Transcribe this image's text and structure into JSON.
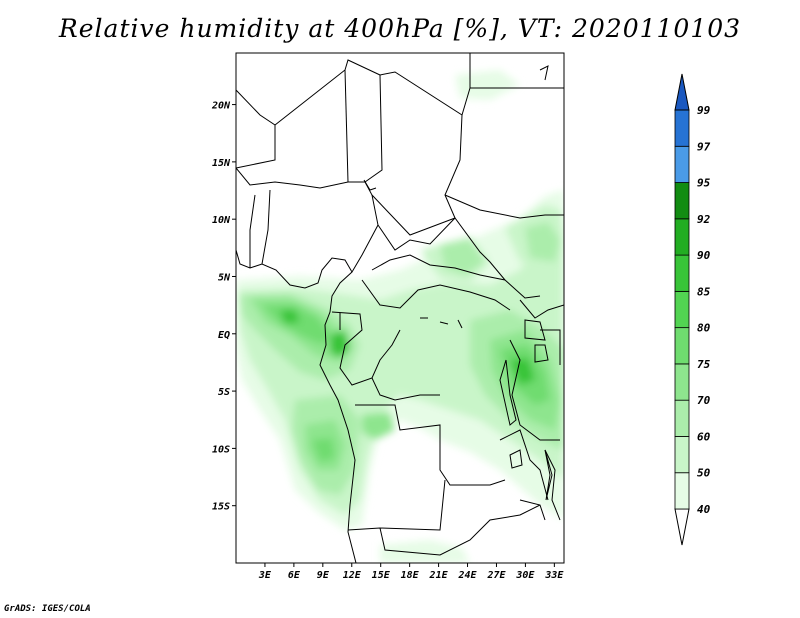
{
  "title": "Relative humidity at 400hPa [%], VT: 2020110103",
  "credit": "GrADS: IGES/COLA",
  "map": {
    "lat_range": [
      -20,
      24.5
    ],
    "lon_range": [
      0,
      34
    ],
    "lat_ticks": [
      {
        "value": 20,
        "label": "20N"
      },
      {
        "value": 15,
        "label": "15N"
      },
      {
        "value": 10,
        "label": "10N"
      },
      {
        "value": 5,
        "label": "5N"
      },
      {
        "value": 0,
        "label": "EQ"
      },
      {
        "value": -5,
        "label": "5S"
      },
      {
        "value": -10,
        "label": "10S"
      },
      {
        "value": -15,
        "label": "15S"
      }
    ],
    "lon_ticks": [
      {
        "value": 3,
        "label": "3E"
      },
      {
        "value": 6,
        "label": "6E"
      },
      {
        "value": 9,
        "label": "9E"
      },
      {
        "value": 12,
        "label": "12E"
      },
      {
        "value": 15,
        "label": "15E"
      },
      {
        "value": 18,
        "label": "18E"
      },
      {
        "value": 21,
        "label": "21E"
      },
      {
        "value": 24,
        "label": "24E"
      },
      {
        "value": 27,
        "label": "27E"
      },
      {
        "value": 30,
        "label": "30E"
      },
      {
        "value": 33,
        "label": "33E"
      }
    ]
  },
  "colorbar": {
    "levels": [
      {
        "label": "40",
        "color": "#e6fce6"
      },
      {
        "label": "50",
        "color": "#c9f5c9"
      },
      {
        "label": "60",
        "color": "#abedab"
      },
      {
        "label": "70",
        "color": "#8ee58e"
      },
      {
        "label": "75",
        "color": "#6fdc6f"
      },
      {
        "label": "80",
        "color": "#52d452"
      },
      {
        "label": "85",
        "color": "#38c438"
      },
      {
        "label": "90",
        "color": "#22ad22"
      },
      {
        "label": "92",
        "color": "#128c12"
      },
      {
        "label": "95",
        "color": "#4a9be8"
      },
      {
        "label": "97",
        "color": "#2673d4"
      },
      {
        "label": "99",
        "color": "#1a58c0"
      }
    ]
  }
}
